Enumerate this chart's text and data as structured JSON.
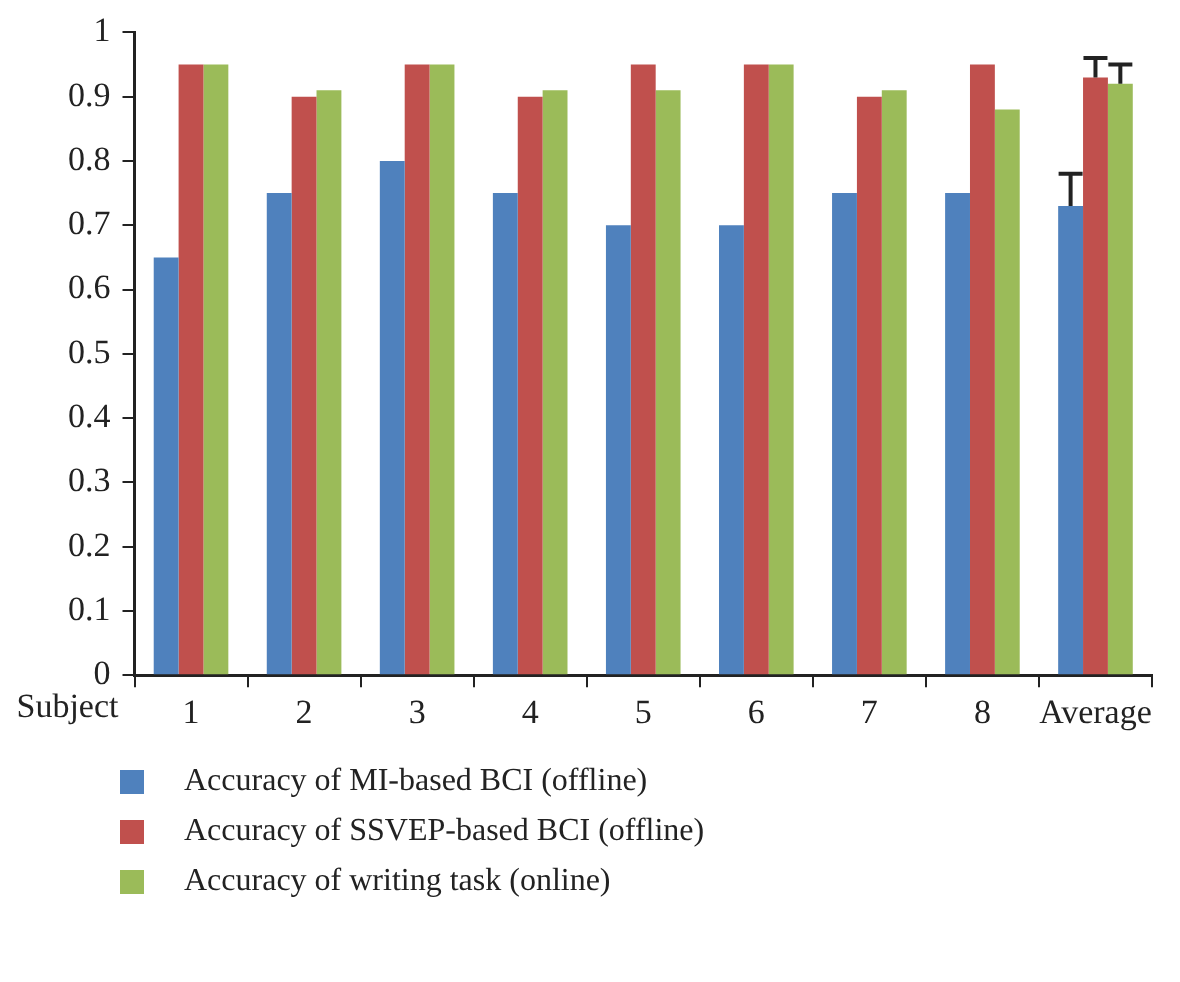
{
  "chart_data": {
    "type": "bar",
    "xlabel": "Subject",
    "categories": [
      "1",
      "2",
      "3",
      "4",
      "5",
      "6",
      "7",
      "8",
      "Average"
    ],
    "series": [
      {
        "name": "Accuracy of MI-based BCI (offline)",
        "color": "#4f81bd",
        "values": [
          0.65,
          0.75,
          0.8,
          0.75,
          0.7,
          0.7,
          0.75,
          0.75,
          0.73
        ],
        "errors": [
          null,
          null,
          null,
          null,
          null,
          null,
          null,
          null,
          [
            0.73,
            0.78
          ]
        ]
      },
      {
        "name": "Accuracy of SSVEP-based BCI (offline)",
        "color": "#c0504d",
        "values": [
          0.95,
          0.9,
          0.95,
          0.9,
          0.95,
          0.95,
          0.9,
          0.95,
          0.93
        ],
        "errors": [
          null,
          null,
          null,
          null,
          null,
          null,
          null,
          null,
          [
            0.93,
            0.96
          ]
        ]
      },
      {
        "name": "Accuracy of writing task (online)",
        "color": "#9bbb59",
        "values": [
          0.95,
          0.91,
          0.95,
          0.91,
          0.91,
          0.95,
          0.91,
          0.88,
          0.92
        ],
        "errors": [
          null,
          null,
          null,
          null,
          null,
          null,
          null,
          null,
          [
            0.92,
            0.95
          ]
        ]
      }
    ],
    "ylim": [
      0,
      1
    ],
    "yticks": [
      0,
      0.1,
      0.2,
      0.3,
      0.4,
      0.5,
      0.6,
      0.7,
      0.8,
      0.9,
      1
    ],
    "grid": false,
    "legend": "bottom"
  }
}
